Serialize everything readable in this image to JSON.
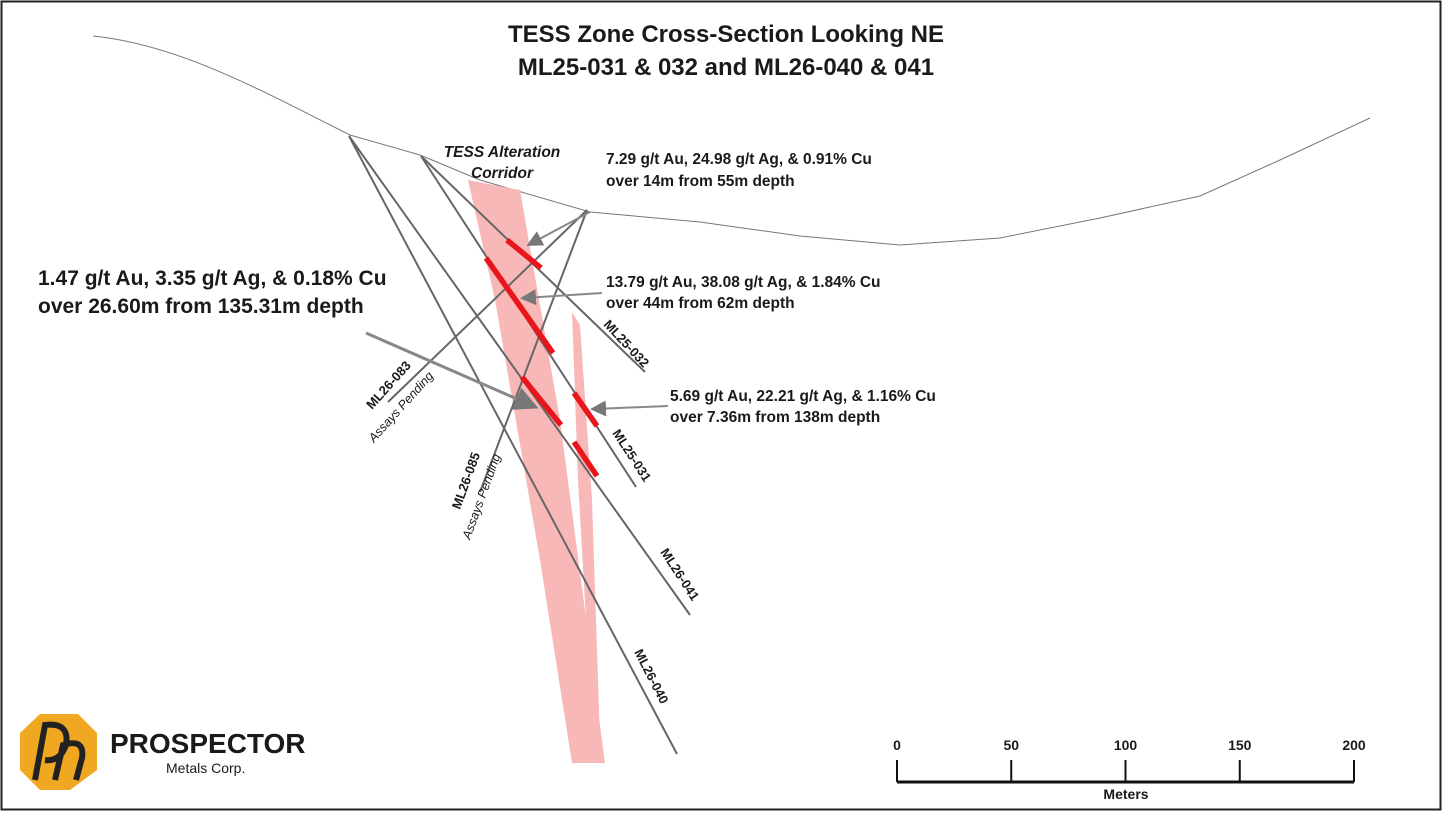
{
  "title": {
    "line1": "TESS Zone Cross-Section Looking NE",
    "line2": "ML25-031 & 032 and ML26-040 & 041"
  },
  "corridor_label": [
    "TESS Alteration",
    "Corridor"
  ],
  "intercepts": [
    {
      "line1": "7.29 g/t Au, 24.98 g/t Ag, & 0.91% Cu",
      "line2": "over 14m from 55m depth"
    },
    {
      "line1": "13.79 g/t Au, 38.08 g/t Ag, & 1.84% Cu",
      "line2": "over 44m from 62m depth"
    },
    {
      "line1": "5.69 g/t Au, 22.21 g/t Ag, & 1.16% Cu",
      "line2": "over 7.36m from 138m depth"
    },
    {
      "line1": "1.47 g/t Au, 3.35 g/t Ag, & 0.18% Cu",
      "line2": "over 26.60m from 135.31m depth"
    }
  ],
  "holes": [
    {
      "name": "ML25-032"
    },
    {
      "name": "ML25-031"
    },
    {
      "name": "ML26-041"
    },
    {
      "name": "ML26-040"
    },
    {
      "name": "ML26-083",
      "note": "Assays Pending"
    },
    {
      "name": "ML26-085",
      "note": "Assays Pending"
    }
  ],
  "logo": {
    "name": "PROSPECTOR",
    "sub": "Metals Corp."
  },
  "scale": {
    "ticks": [
      0,
      50,
      100,
      150,
      200
    ],
    "unit": "Meters"
  }
}
